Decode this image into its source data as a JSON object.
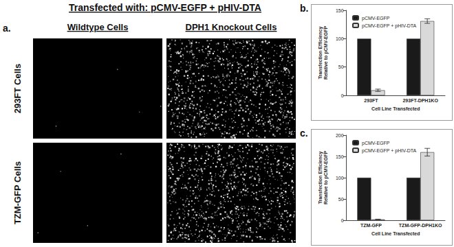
{
  "panel_a": {
    "label": "a.",
    "title": "Transfected with: pCMV-EGFP + pHIV-DTA",
    "columns": [
      "Wildtype Cells",
      "DPH1 Knockout Cells"
    ],
    "rows": [
      "293FT Cells",
      "TZM-GFP Cells"
    ]
  },
  "chart_data": [
    {
      "panel": "b.",
      "type": "bar",
      "x_label": "Cell Line Transfected",
      "y_label": "Transfection Efficiency\nRelative to pCMV-EGFP",
      "categories": [
        "293FT",
        "293FT-DPH1KO"
      ],
      "series": [
        {
          "name": "pCMV-EGFP",
          "color": "#1a1a1a",
          "values": [
            100,
            100
          ]
        },
        {
          "name": "pCMV-EGFP + pHIV-DTA",
          "color": "#d9d9d9",
          "values": [
            9,
            131
          ],
          "errors": [
            2,
            4
          ]
        }
      ],
      "ylim": [
        0,
        150
      ],
      "yticks": [
        0,
        50,
        100,
        150
      ],
      "grid": false,
      "legend": "upper left"
    },
    {
      "panel": "c.",
      "type": "bar",
      "x_label": "Cell Line Transfected",
      "y_label": "Transfection Efficiency\nRelative to pCMV-EGFP",
      "categories": [
        "TZM-GFP",
        "TZM-GFP-DPH1KO"
      ],
      "series": [
        {
          "name": "pCMV-EGFP",
          "color": "#1a1a1a",
          "values": [
            100,
            100
          ]
        },
        {
          "name": "pCMV-EGFP + pHIV-DTA",
          "color": "#d9d9d9",
          "values": [
            2,
            160
          ],
          "errors": [
            0.5,
            9
          ]
        }
      ],
      "ylim": [
        0,
        200
      ],
      "yticks": [
        0,
        50,
        100,
        150,
        200
      ],
      "grid": false,
      "legend": "upper left"
    }
  ]
}
